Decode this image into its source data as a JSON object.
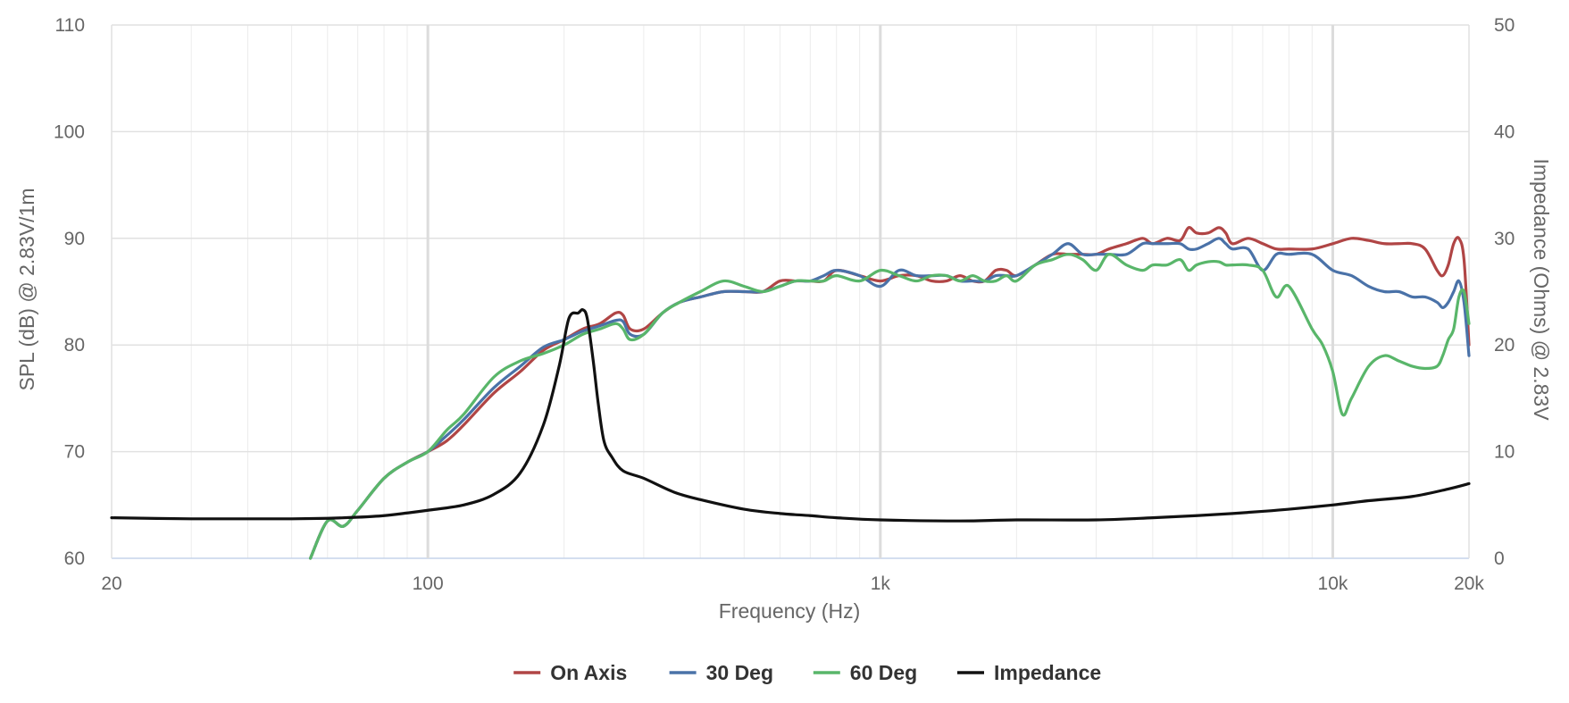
{
  "chart_data": {
    "type": "line",
    "title": "",
    "xlabel": "Frequency (Hz)",
    "ylabel": "SPL (dB) @ 2.83V/1m",
    "y2label": "Impedance (Ohms) @ 2.83V",
    "x_scale": "log",
    "xlim": [
      20,
      20000
    ],
    "ylim": [
      60,
      110
    ],
    "y2lim": [
      0,
      50
    ],
    "x_ticks": [
      {
        "value": 20,
        "label": "20"
      },
      {
        "value": 100,
        "label": "100"
      },
      {
        "value": 1000,
        "label": "1k"
      },
      {
        "value": 10000,
        "label": "10k"
      },
      {
        "value": 20000,
        "label": "20k"
      }
    ],
    "y_ticks": [
      {
        "value": 60,
        "label": "60"
      },
      {
        "value": 70,
        "label": "70"
      },
      {
        "value": 80,
        "label": "80"
      },
      {
        "value": 90,
        "label": "90"
      },
      {
        "value": 100,
        "label": "100"
      },
      {
        "value": 110,
        "label": "110"
      }
    ],
    "y2_ticks": [
      {
        "value": 0,
        "label": "0"
      },
      {
        "value": 10,
        "label": "10"
      },
      {
        "value": 20,
        "label": "20"
      },
      {
        "value": 30,
        "label": "30"
      },
      {
        "value": 40,
        "label": "40"
      },
      {
        "value": 50,
        "label": "50"
      }
    ],
    "grid": true,
    "legend_position": "bottom-center",
    "series": [
      {
        "name": "On Axis",
        "axis": "left",
        "color": "#b04545",
        "x": [
          55,
          60,
          65,
          70,
          80,
          90,
          100,
          110,
          120,
          140,
          160,
          180,
          200,
          220,
          240,
          260,
          270,
          280,
          300,
          330,
          360,
          400,
          450,
          500,
          550,
          600,
          650,
          700,
          750,
          800,
          900,
          1000,
          1100,
          1200,
          1300,
          1400,
          1500,
          1600,
          1700,
          1800,
          1900,
          2000,
          2200,
          2400,
          2600,
          2800,
          3000,
          3200,
          3500,
          3800,
          4000,
          4300,
          4600,
          4800,
          5000,
          5300,
          5600,
          5800,
          6000,
          6500,
          7000,
          7500,
          8000,
          9000,
          10000,
          11000,
          12000,
          13000,
          14000,
          15000,
          16000,
          17000,
          17500,
          18000,
          18500,
          19000,
          19500,
          20000
        ],
        "y": [
          60,
          63.5,
          63,
          64.5,
          67.5,
          69,
          70,
          71,
          72.5,
          75.5,
          77.5,
          79.5,
          80.5,
          81.5,
          82,
          83,
          82.8,
          81.5,
          81.5,
          83,
          84,
          84.5,
          85,
          85,
          85,
          86,
          86,
          86,
          86,
          87,
          86.5,
          86,
          86.5,
          86.5,
          86,
          86,
          86.5,
          86,
          86,
          87,
          87,
          86.5,
          87.5,
          88.5,
          88.5,
          88.5,
          88.5,
          89,
          89.5,
          90,
          89.5,
          90,
          89.8,
          91,
          90.5,
          90.5,
          91,
          90.5,
          89.5,
          90,
          89.5,
          89,
          89,
          89,
          89.5,
          90,
          89.8,
          89.5,
          89.5,
          89.5,
          89,
          87,
          86.5,
          87.5,
          89.5,
          90,
          88,
          80
        ]
      },
      {
        "name": "30 Deg",
        "axis": "left",
        "color": "#4a72a8",
        "x": [
          55,
          60,
          65,
          70,
          80,
          90,
          100,
          110,
          120,
          140,
          160,
          180,
          200,
          220,
          240,
          260,
          270,
          280,
          300,
          330,
          360,
          400,
          450,
          500,
          550,
          600,
          650,
          700,
          750,
          800,
          900,
          1000,
          1100,
          1200,
          1300,
          1400,
          1500,
          1600,
          1700,
          1800,
          1900,
          2000,
          2200,
          2400,
          2600,
          2800,
          3000,
          3200,
          3500,
          3800,
          4000,
          4300,
          4600,
          4800,
          5000,
          5300,
          5600,
          5800,
          6000,
          6500,
          7000,
          7500,
          8000,
          9000,
          10000,
          11000,
          12000,
          13000,
          14000,
          15000,
          16000,
          17000,
          17500,
          18000,
          18500,
          19000,
          19500,
          20000
        ],
        "y": [
          60,
          63.5,
          63,
          64.5,
          67.5,
          69,
          70,
          71.5,
          73,
          76,
          78,
          79.8,
          80.5,
          81.3,
          81.8,
          82.3,
          82.2,
          81,
          81,
          83,
          84,
          84.5,
          85,
          85,
          85,
          85.5,
          86,
          86,
          86.5,
          87,
          86.5,
          85.5,
          87,
          86.5,
          86.5,
          86.5,
          86,
          86,
          86,
          86.5,
          86.5,
          86.5,
          87.5,
          88.5,
          89.5,
          88.5,
          88.5,
          88.5,
          88.5,
          89.5,
          89.5,
          89.5,
          89.5,
          89,
          89,
          89.5,
          90,
          89.5,
          89,
          89,
          87,
          88.5,
          88.5,
          88.5,
          87,
          86.5,
          85.5,
          85,
          85,
          84.5,
          84.5,
          84,
          83.5,
          84,
          85,
          86,
          84,
          79
        ]
      },
      {
        "name": "60 Deg",
        "axis": "left",
        "color": "#59b66a",
        "x": [
          55,
          60,
          65,
          70,
          80,
          90,
          100,
          110,
          120,
          140,
          160,
          180,
          200,
          220,
          240,
          260,
          270,
          280,
          300,
          330,
          360,
          400,
          450,
          500,
          550,
          600,
          650,
          700,
          750,
          800,
          900,
          1000,
          1100,
          1200,
          1300,
          1400,
          1500,
          1600,
          1700,
          1800,
          1900,
          2000,
          2200,
          2400,
          2600,
          2800,
          3000,
          3200,
          3500,
          3800,
          4000,
          4300,
          4600,
          4800,
          5000,
          5300,
          5600,
          5800,
          6000,
          6500,
          7000,
          7500,
          8000,
          9000,
          9500,
          10000,
          10500,
          11000,
          12000,
          13000,
          14000,
          15000,
          16000,
          17000,
          17500,
          18000,
          18500,
          19000,
          19500,
          20000
        ],
        "y": [
          60,
          63.5,
          63,
          64.5,
          67.5,
          69,
          70,
          72,
          73.5,
          77,
          78.5,
          79.2,
          80,
          81,
          81.5,
          82,
          81.5,
          80.5,
          81,
          83,
          84,
          85,
          86,
          85.5,
          85,
          85.5,
          86,
          86,
          86,
          86.5,
          86,
          87,
          86.5,
          86,
          86.5,
          86.5,
          86,
          86.5,
          86,
          86,
          86.5,
          86,
          87.5,
          88,
          88.5,
          88,
          87,
          88.5,
          87.5,
          87,
          87.5,
          87.5,
          88,
          87,
          87.5,
          87.8,
          87.8,
          87.5,
          87.5,
          87.5,
          87,
          84.5,
          85.5,
          81.5,
          80,
          77.5,
          73.5,
          75,
          78,
          79,
          78.5,
          78,
          77.8,
          78,
          79,
          80.5,
          81.5,
          84.5,
          85,
          82
        ]
      },
      {
        "name": "Impedance",
        "axis": "right",
        "color": "#111111",
        "x": [
          20,
          30,
          40,
          50,
          60,
          70,
          80,
          90,
          100,
          120,
          140,
          160,
          180,
          195,
          205,
          215,
          220,
          225,
          232,
          238,
          245,
          255,
          270,
          300,
          350,
          400,
          500,
          600,
          700,
          800,
          1000,
          1500,
          2000,
          3000,
          4000,
          5000,
          6000,
          7000,
          8000,
          10000,
          12000,
          15000,
          18000,
          20000
        ],
        "y": [
          3.8,
          3.7,
          3.7,
          3.7,
          3.75,
          3.85,
          4.0,
          4.25,
          4.5,
          5.0,
          6.0,
          8.0,
          12.5,
          18.0,
          22.5,
          23.0,
          23.3,
          22.5,
          18.5,
          14.5,
          11.0,
          9.5,
          8.2,
          7.5,
          6.2,
          5.5,
          4.6,
          4.2,
          4.0,
          3.8,
          3.6,
          3.5,
          3.6,
          3.6,
          3.8,
          4.0,
          4.2,
          4.4,
          4.6,
          5.0,
          5.4,
          5.8,
          6.5,
          7.0
        ]
      }
    ]
  }
}
